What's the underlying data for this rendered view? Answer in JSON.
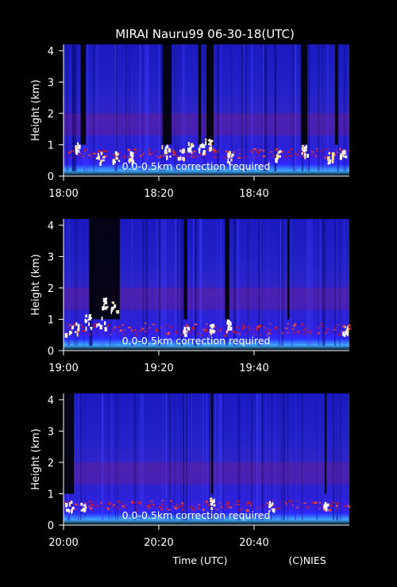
{
  "title": "MIRAI Nauru99 06-30-18(UTC)",
  "footer": {
    "xlabel": "Time (UTC)",
    "credit": "(C)NIES"
  },
  "colors": {
    "background": "#000000",
    "low": "#1a1ad0",
    "mid": "#2a2af0",
    "high": "#c81a1a",
    "max": "#ffffff"
  },
  "chart_data": [
    {
      "type": "heatmap",
      "xlabel": "",
      "ylabel": "Height (km)",
      "ylim": [
        0,
        4.2
      ],
      "xlim_minutes": [
        0,
        60
      ],
      "xticks": [
        "18:00",
        "18:20",
        "18:40"
      ],
      "yticks": [
        "0",
        "1",
        "2",
        "3",
        "4"
      ],
      "annotation": "0.0-0.5km correction required",
      "bright_layer_km": [
        0.6,
        0.9
      ],
      "cloud_events": [
        {
          "t": 3.0,
          "top": 1.1,
          "w": 1.3
        },
        {
          "t": 7.5,
          "top": 0.8,
          "w": 1.5
        },
        {
          "t": 11.0,
          "top": 0.8,
          "w": 1.5
        },
        {
          "t": 14.0,
          "top": 0.8,
          "w": 1.2
        },
        {
          "t": 21.5,
          "top": 1.0,
          "w": 2.0
        },
        {
          "t": 24.5,
          "top": 0.9,
          "w": 1.2
        },
        {
          "t": 26.5,
          "top": 1.1,
          "w": 1.0
        },
        {
          "t": 28.8,
          "top": 1.1,
          "w": 1.2
        },
        {
          "t": 30.3,
          "top": 1.2,
          "w": 1.5
        },
        {
          "t": 34.8,
          "top": 0.8,
          "w": 1.0
        },
        {
          "t": 44.8,
          "top": 0.9,
          "w": 1.0
        },
        {
          "t": 50.5,
          "top": 1.0,
          "w": 1.3
        },
        {
          "t": 55.8,
          "top": 0.8,
          "w": 1.2
        },
        {
          "t": 58.5,
          "top": 1.0,
          "w": 1.2
        }
      ],
      "dark_gaps": [
        [
          3.6,
          4.7
        ],
        [
          20.8,
          22.7
        ],
        [
          28.3,
          28.9
        ],
        [
          30.0,
          31.5
        ],
        [
          49.8,
          51.2
        ],
        [
          57.0,
          57.6
        ]
      ]
    },
    {
      "type": "heatmap",
      "xlabel": "",
      "ylabel": "Height (km)",
      "ylim": [
        0,
        4.2
      ],
      "xlim_minutes": [
        0,
        60
      ],
      "xticks": [
        "19:00",
        "19:20",
        "19:40"
      ],
      "yticks": [
        "0",
        "1",
        "2",
        "3",
        "4"
      ],
      "annotation": "0.0-0.5km correction required",
      "bright_layer_km": [
        0.5,
        0.9
      ],
      "cloud_events": [
        {
          "t": 1.5,
          "top": 0.9,
          "w": 3.0
        },
        {
          "t": 5.0,
          "top": 1.2,
          "w": 1.2
        },
        {
          "t": 6.5,
          "top": 1.1,
          "w": 4.5
        },
        {
          "t": 8.5,
          "top": 1.7,
          "w": 1.0
        },
        {
          "t": 10.5,
          "top": 1.6,
          "w": 1.2
        },
        {
          "t": 25.5,
          "top": 0.8,
          "w": 1.2
        },
        {
          "t": 31.0,
          "top": 0.9,
          "w": 1.0
        },
        {
          "t": 34.5,
          "top": 1.0,
          "w": 1.0
        },
        {
          "t": 59.0,
          "top": 0.8,
          "w": 1.2
        }
      ],
      "dark_gaps": [
        [
          5.4,
          11.8
        ],
        [
          25.2,
          26.0
        ],
        [
          33.9,
          34.8
        ],
        [
          47.0,
          47.4
        ]
      ]
    },
    {
      "type": "heatmap",
      "xlabel": "Time (UTC)",
      "ylabel": "Height (km)",
      "ylim": [
        0,
        4.2
      ],
      "xlim_minutes": [
        0,
        60
      ],
      "xticks": [
        "20:00",
        "20:20",
        "20:40"
      ],
      "yticks": [
        "0",
        "1",
        "2",
        "3",
        "4"
      ],
      "annotation": "0.0-0.5km correction required",
      "bright_layer_km": [
        0.5,
        0.8
      ],
      "cloud_events": [
        {
          "t": 1.0,
          "top": 0.8,
          "w": 2.0
        },
        {
          "t": 4.0,
          "top": 0.8,
          "w": 1.0
        },
        {
          "t": 31.2,
          "top": 0.9,
          "w": 1.0
        },
        {
          "t": 43.5,
          "top": 0.8,
          "w": 1.0
        },
        {
          "t": 55.0,
          "top": 0.8,
          "w": 1.0
        }
      ],
      "dark_gaps": [
        [
          0.0,
          2.2
        ],
        [
          31.0,
          31.4
        ],
        [
          54.8,
          55.2
        ]
      ]
    }
  ]
}
